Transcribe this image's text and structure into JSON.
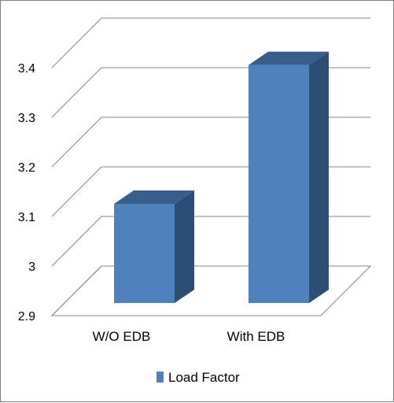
{
  "chart_data": {
    "type": "bar",
    "categories": [
      "W/O EDB",
      "With EDB"
    ],
    "series": [
      {
        "name": "Load Factor",
        "values": [
          3.1,
          3.38
        ]
      }
    ],
    "ylim": [
      2.9,
      3.4
    ],
    "yticks": [
      "2.9",
      "3",
      "3.1",
      "3.2",
      "3.3",
      "3.4"
    ],
    "ytick_values": [
      2.9,
      3.0,
      3.1,
      3.2,
      3.3,
      3.4
    ],
    "grid": true,
    "legend_position": "bottom",
    "colors": {
      "bar_front": "#4f81bd",
      "bar_side": "#2c4d75",
      "bar_top": "#385d8a",
      "grid": "#868686",
      "frame": "#7f7f7f"
    }
  }
}
